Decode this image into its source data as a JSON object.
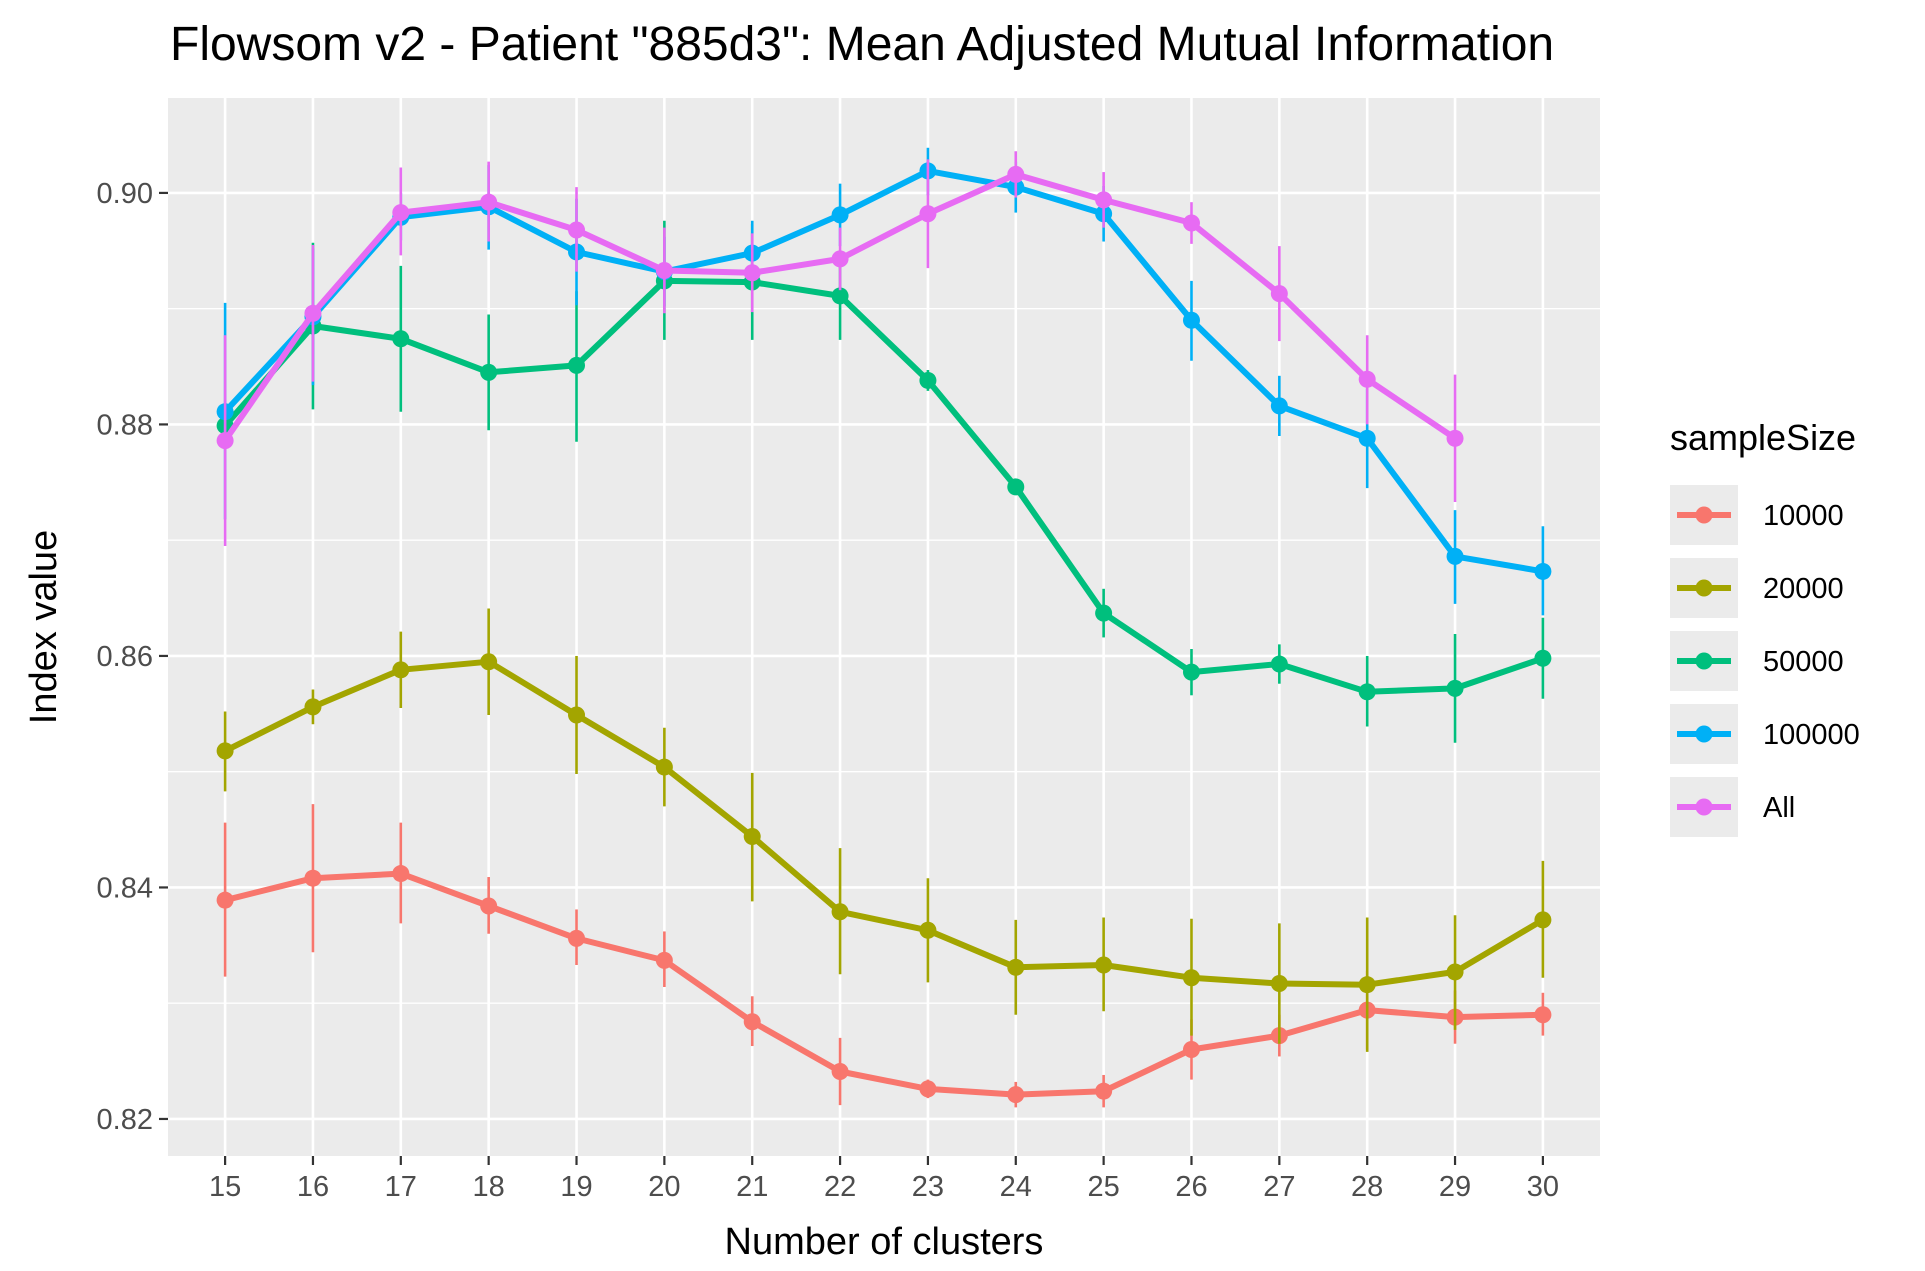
{
  "chart_data": {
    "type": "line",
    "title": "Flowsom v2 - Patient \"885d3\": Mean Adjusted Mutual Information",
    "xlabel": "Number of clusters",
    "ylabel": "Index value",
    "x": [
      15,
      16,
      17,
      18,
      19,
      20,
      21,
      22,
      23,
      24,
      25,
      26,
      27,
      28,
      29,
      30
    ],
    "xlim": [
      14.35,
      30.65
    ],
    "ylim": [
      0.8168,
      0.9082
    ],
    "y_ticks": [
      0.82,
      0.84,
      0.86,
      0.88,
      0.9
    ],
    "y_tick_labels": [
      "0.82",
      "0.84",
      "0.86",
      "0.88",
      "0.90"
    ],
    "x_tick_labels": [
      "15",
      "16",
      "17",
      "18",
      "19",
      "20",
      "21",
      "22",
      "23",
      "24",
      "25",
      "26",
      "27",
      "28",
      "29",
      "30"
    ],
    "grid": true,
    "legend": {
      "title": "sampleSize",
      "position": "right"
    },
    "series": [
      {
        "name": "10000",
        "color": "#F8766D",
        "values": [
          0.8389,
          0.8408,
          0.8412,
          0.8384,
          0.8356,
          0.8337,
          0.8284,
          0.8241,
          0.8226,
          0.8221,
          0.8224,
          0.826,
          0.8272,
          0.8294,
          0.8288,
          0.829
        ],
        "lower": [
          0.8323,
          0.8344,
          0.8369,
          0.836,
          0.8333,
          0.8314,
          0.8263,
          0.8212,
          0.8218,
          0.821,
          0.821,
          0.8234,
          0.8254,
          0.826,
          0.8265,
          0.8272
        ],
        "upper": [
          0.8456,
          0.8472,
          0.8456,
          0.8409,
          0.8381,
          0.8362,
          0.8306,
          0.827,
          0.8234,
          0.8232,
          0.8238,
          0.8286,
          0.829,
          0.8328,
          0.8311,
          0.8309
        ]
      },
      {
        "name": "20000",
        "color": "#A3A500",
        "values": [
          0.8518,
          0.8556,
          0.8588,
          0.8595,
          0.8549,
          0.8504,
          0.8444,
          0.8379,
          0.8363,
          0.8331,
          0.8333,
          0.8322,
          0.8317,
          0.8316,
          0.8327,
          0.8372
        ],
        "lower": [
          0.8483,
          0.8541,
          0.8555,
          0.8549,
          0.8498,
          0.847,
          0.8388,
          0.8325,
          0.8318,
          0.829,
          0.8293,
          0.8272,
          0.8265,
          0.8258,
          0.8277,
          0.8322
        ],
        "upper": [
          0.8552,
          0.8571,
          0.8621,
          0.8641,
          0.86,
          0.8538,
          0.8499,
          0.8434,
          0.8408,
          0.8372,
          0.8374,
          0.8373,
          0.8369,
          0.8374,
          0.8376,
          0.8423
        ]
      },
      {
        "name": "50000",
        "color": "#00BF7D",
        "values": [
          0.8799,
          0.8885,
          0.8874,
          0.8845,
          0.8851,
          0.8924,
          0.8923,
          0.8911,
          0.8838,
          0.8746,
          0.8637,
          0.8586,
          0.8593,
          0.8569,
          0.8572,
          0.8598
        ],
        "lower": [
          0.8795,
          0.8813,
          0.8811,
          0.8795,
          0.8785,
          0.8873,
          0.8873,
          0.8873,
          0.8829,
          0.874,
          0.8616,
          0.8566,
          0.8576,
          0.8539,
          0.8525,
          0.8563
        ],
        "upper": [
          0.8803,
          0.8957,
          0.8937,
          0.8895,
          0.8915,
          0.8976,
          0.8973,
          0.895,
          0.8847,
          0.8752,
          0.8658,
          0.8606,
          0.861,
          0.86,
          0.8619,
          0.8633
        ]
      },
      {
        "name": "100000",
        "color": "#00B0F6",
        "values": [
          0.8811,
          0.8893,
          0.8979,
          0.8988,
          0.8949,
          0.8932,
          0.8948,
          0.8981,
          0.9019,
          0.9005,
          0.8982,
          0.889,
          0.8816,
          0.8788,
          0.8686,
          0.8673
        ],
        "lower": [
          0.8718,
          0.8834,
          0.8959,
          0.8951,
          0.8903,
          0.8902,
          0.892,
          0.8954,
          0.8998,
          0.8983,
          0.8958,
          0.8855,
          0.879,
          0.8745,
          0.8645,
          0.8635
        ],
        "upper": [
          0.8905,
          0.8952,
          0.9,
          0.9024,
          0.8995,
          0.8962,
          0.8976,
          0.9008,
          0.9039,
          0.9027,
          0.9006,
          0.8924,
          0.8842,
          0.8831,
          0.8726,
          0.8712
        ]
      },
      {
        "name": "All",
        "color": "#E76BF3",
        "values": [
          0.8786,
          0.8896,
          0.8983,
          0.8992,
          0.8968,
          0.8933,
          0.8931,
          0.8943,
          0.8982,
          0.9016,
          0.8994,
          0.8974,
          0.8913,
          0.8839,
          0.8788,
          null
        ],
        "lower": [
          0.8695,
          0.8837,
          0.8946,
          0.8958,
          0.8932,
          0.8896,
          0.8897,
          0.8916,
          0.8935,
          0.8996,
          0.897,
          0.8956,
          0.8872,
          0.88,
          0.8733,
          null
        ],
        "upper": [
          0.8877,
          0.8955,
          0.9022,
          0.9027,
          0.9005,
          0.897,
          0.8965,
          0.897,
          0.9029,
          0.9036,
          0.9018,
          0.8992,
          0.8954,
          0.8877,
          0.8843,
          null
        ]
      }
    ]
  }
}
